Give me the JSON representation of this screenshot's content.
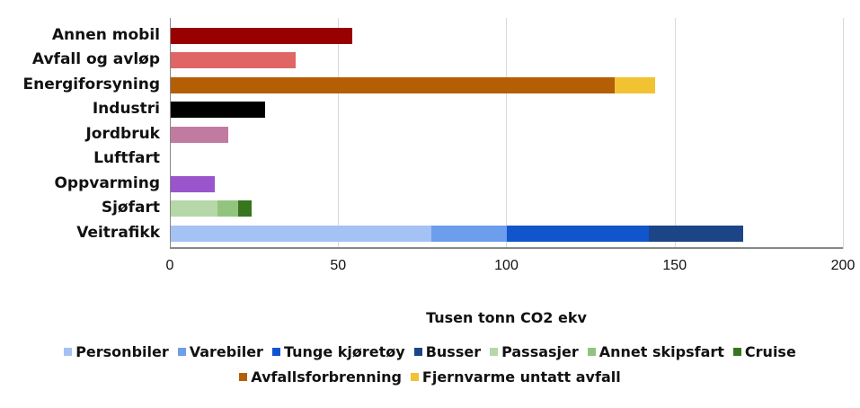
{
  "chart_data": {
    "type": "bar",
    "orientation": "horizontal",
    "stacked": true,
    "title": "",
    "xlabel": "Tusen tonn CO2 ekv",
    "ylabel": "",
    "xlim": [
      0,
      200
    ],
    "x_ticks": [
      "0",
      "50",
      "100",
      "150",
      "200"
    ],
    "grid": true,
    "legend_position": "bottom",
    "categories": [
      "Annen mobil",
      "Avfall og avløp",
      "Energiforsyning",
      "Industri",
      "Jordbruk",
      "Luftfart",
      "Oppvarming",
      "Sjøfart",
      "Veitrafikk"
    ],
    "series": [
      {
        "name": "Annen mobil",
        "color": "#990000",
        "in_legend": false,
        "values": [
          54,
          0,
          0,
          0,
          0,
          0,
          0,
          0,
          0
        ]
      },
      {
        "name": "Avfall og avløp",
        "color": "#e06666",
        "in_legend": false,
        "values": [
          0,
          37,
          0,
          0,
          0,
          0,
          0,
          0,
          0
        ]
      },
      {
        "name": "Avfallsforbrenning",
        "color": "#b45f06",
        "in_legend": true,
        "values": [
          0,
          0,
          132,
          0,
          0,
          0,
          0,
          0,
          0
        ]
      },
      {
        "name": "Fjernvarme untatt avfall",
        "color": "#f1c232",
        "in_legend": true,
        "values": [
          0,
          0,
          12,
          0,
          0,
          0,
          0,
          0,
          0
        ]
      },
      {
        "name": "Industri",
        "color": "#000000",
        "in_legend": false,
        "values": [
          0,
          0,
          0,
          28,
          0,
          0,
          0,
          0,
          0
        ]
      },
      {
        "name": "Jordbruk",
        "color": "#c27ba0",
        "in_legend": false,
        "values": [
          0,
          0,
          0,
          0,
          17,
          0,
          0,
          0,
          0
        ]
      },
      {
        "name": "Luftfart",
        "color": "#cccccc",
        "in_legend": false,
        "values": [
          0,
          0,
          0,
          0,
          0,
          0,
          0,
          0,
          0
        ]
      },
      {
        "name": "Oppvarming",
        "color": "#9a55cc",
        "in_legend": false,
        "values": [
          0,
          0,
          0,
          0,
          0,
          0,
          13,
          0,
          0
        ]
      },
      {
        "name": "Passasjer",
        "color": "#b6d7a8",
        "in_legend": true,
        "values": [
          0,
          0,
          0,
          0,
          0,
          0,
          0,
          14,
          0
        ]
      },
      {
        "name": "Annet skipsfart",
        "color": "#93c47d",
        "in_legend": true,
        "values": [
          0,
          0,
          0,
          0,
          0,
          0,
          0,
          6,
          0
        ]
      },
      {
        "name": "Cruise",
        "color": "#38761d",
        "in_legend": true,
        "values": [
          0,
          0,
          0,
          0,
          0,
          0,
          0,
          4,
          0
        ]
      },
      {
        "name": "Personbiler",
        "color": "#a4c2f4",
        "in_legend": true,
        "values": [
          0,
          0,
          0,
          0,
          0,
          0,
          0,
          0,
          77.5
        ]
      },
      {
        "name": "Varebiler",
        "color": "#6d9eeb",
        "in_legend": true,
        "values": [
          0,
          0,
          0,
          0,
          0,
          0,
          0,
          0,
          22.5
        ]
      },
      {
        "name": "Tunge kjøretøy",
        "color": "#1155cc",
        "in_legend": true,
        "values": [
          0,
          0,
          0,
          0,
          0,
          0,
          0,
          0,
          42
        ]
      },
      {
        "name": "Busser",
        "color": "#1c4587",
        "in_legend": true,
        "values": [
          0,
          0,
          0,
          0,
          0,
          0,
          0,
          0,
          28
        ]
      }
    ]
  },
  "axis": {
    "x_title": "Tusen tonn CO2 ekv",
    "ticks": [
      "0",
      "50",
      "100",
      "150",
      "200"
    ]
  },
  "rows": [
    {
      "label": "Annen mobil",
      "segments": [
        {
          "name": "Annen mobil",
          "value": 54,
          "color": "#990000"
        }
      ]
    },
    {
      "label": "Avfall og avløp",
      "segments": [
        {
          "name": "Avfall og avløp",
          "value": 37,
          "color": "#e06666"
        }
      ]
    },
    {
      "label": "Energiforsyning",
      "segments": [
        {
          "name": "Avfallsforbrenning",
          "value": 132,
          "color": "#b45f06"
        },
        {
          "name": "Fjernvarme untatt avfall",
          "value": 12,
          "color": "#f1c232"
        }
      ]
    },
    {
      "label": "Industri",
      "segments": [
        {
          "name": "Industri",
          "value": 28,
          "color": "#000000"
        }
      ]
    },
    {
      "label": "Jordbruk",
      "segments": [
        {
          "name": "Jordbruk",
          "value": 17,
          "color": "#c27ba0"
        }
      ]
    },
    {
      "label": "Luftfart",
      "segments": []
    },
    {
      "label": "Oppvarming",
      "segments": [
        {
          "name": "Oppvarming",
          "value": 13,
          "color": "#9a55cc"
        }
      ]
    },
    {
      "label": "Sjøfart",
      "segments": [
        {
          "name": "Passasjer",
          "value": 14,
          "color": "#b6d7a8"
        },
        {
          "name": "Annet skipsfart",
          "value": 6,
          "color": "#93c47d"
        },
        {
          "name": "Cruise",
          "value": 4,
          "color": "#38761d"
        }
      ]
    },
    {
      "label": "Veitrafikk",
      "segments": [
        {
          "name": "Personbiler",
          "value": 77.5,
          "color": "#a4c2f4"
        },
        {
          "name": "Varebiler",
          "value": 22.5,
          "color": "#6d9eeb"
        },
        {
          "name": "Tunge kjøretøy",
          "value": 42,
          "color": "#1155cc"
        },
        {
          "name": "Busser",
          "value": 28,
          "color": "#1c4587"
        }
      ]
    }
  ],
  "legend": {
    "line1": [
      {
        "label": "Personbiler",
        "color": "#a4c2f4"
      },
      {
        "label": "Varebiler",
        "color": "#6d9eeb"
      },
      {
        "label": "Tunge kjøretøy",
        "color": "#1155cc"
      },
      {
        "label": "Busser",
        "color": "#1c4587"
      },
      {
        "label": "Passasjer",
        "color": "#b6d7a8"
      },
      {
        "label": "Annet skipsfart",
        "color": "#93c47d"
      },
      {
        "label": "Cruise",
        "color": "#38761d"
      }
    ],
    "line2": [
      {
        "label": "Avfallsforbrenning",
        "color": "#b45f06"
      },
      {
        "label": "Fjernvarme untatt avfall",
        "color": "#f1c232"
      }
    ]
  }
}
